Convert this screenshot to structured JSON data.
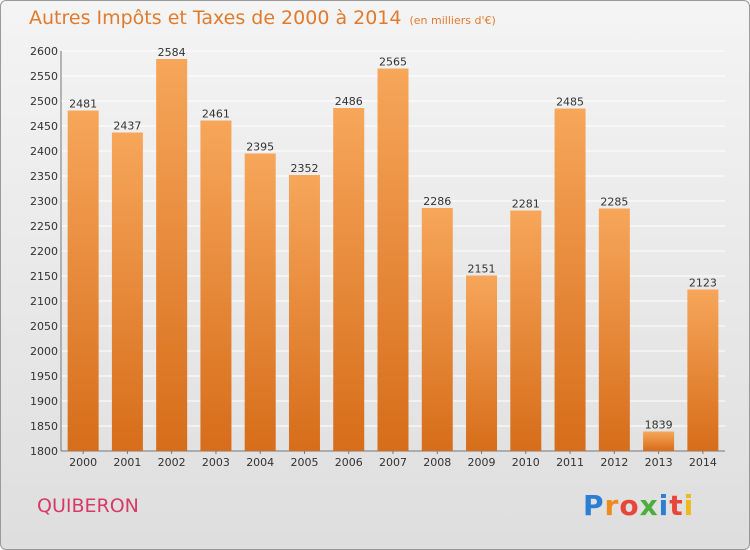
{
  "header": {
    "title": "Autres Impôts et Taxes de 2000 à 2014",
    "unit_note": "(en milliers d'€)"
  },
  "footer": {
    "city": "QUIBERON",
    "brand_letters": [
      "P",
      "r",
      "o",
      "x",
      "i",
      "t",
      "i"
    ],
    "brand_colors": [
      "#2a7fd4",
      "#f08a1c",
      "#e8463a",
      "#4cae3c",
      "#2a7fd4",
      "#e8463a",
      "#f0b81c"
    ]
  },
  "colors": {
    "bar_light": "#f7a65a",
    "bar_dark": "#d66d1a",
    "title": "#e07b2e",
    "grid": "#ffffff"
  },
  "chart_data": {
    "type": "bar",
    "title": "Autres Impôts et Taxes de 2000 à 2014",
    "subtitle": "(en milliers d'€)",
    "xlabel": "",
    "ylabel": "",
    "categories": [
      "2000",
      "2001",
      "2002",
      "2003",
      "2004",
      "2005",
      "2006",
      "2007",
      "2008",
      "2009",
      "2010",
      "2011",
      "2012",
      "2013",
      "2014"
    ],
    "values": [
      2481,
      2437,
      2584,
      2461,
      2395,
      2352,
      2486,
      2565,
      2286,
      2151,
      2281,
      2485,
      2285,
      1839,
      2123
    ],
    "ylim": [
      1800,
      2600
    ],
    "yticks": [
      1800,
      1850,
      1900,
      1950,
      2000,
      2050,
      2100,
      2150,
      2200,
      2250,
      2300,
      2350,
      2400,
      2450,
      2500,
      2550,
      2600
    ],
    "grid": true,
    "legend": "none"
  }
}
